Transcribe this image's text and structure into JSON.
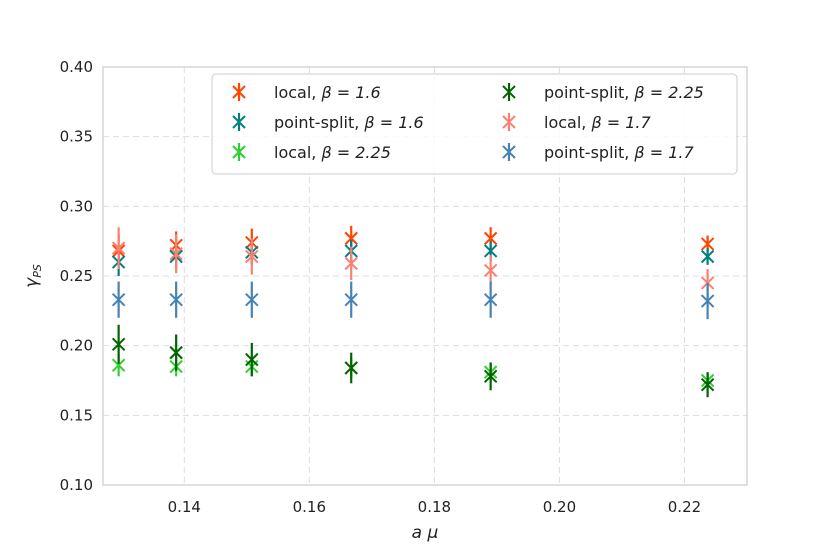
{
  "chart_data": {
    "type": "scatter",
    "title": "",
    "xlabel": "a μ",
    "ylabel_main": "γ",
    "ylabel_sub": "PS",
    "xlim": [
      0.127,
      0.23
    ],
    "ylim": [
      0.1,
      0.4
    ],
    "xticks": [
      0.14,
      0.16,
      0.18,
      0.2,
      0.22
    ],
    "xtick_labels": [
      "0.14",
      "0.16",
      "0.18",
      "0.20",
      "0.22"
    ],
    "yticks": [
      0.1,
      0.15,
      0.2,
      0.25,
      0.3,
      0.35,
      0.4
    ],
    "ytick_labels": [
      "0.10",
      "0.15",
      "0.20",
      "0.25",
      "0.30",
      "0.35",
      "0.40"
    ],
    "grid": true,
    "legend_position": "top-right",
    "x": [
      0.1295,
      0.1387,
      0.1508,
      0.1667,
      0.189,
      0.2237
    ],
    "series": [
      {
        "name": "local, β = 1.6",
        "legend_label": "local, ",
        "legend_beta": "β = 1.6",
        "color": "#ff4500",
        "values": [
          0.268,
          0.272,
          0.274,
          0.277,
          0.277,
          0.273
        ],
        "errors": [
          0.012,
          0.01,
          0.01,
          0.009,
          0.008,
          0.006
        ]
      },
      {
        "name": "point-split, β = 1.6",
        "legend_label": "point-split, ",
        "legend_beta": "β = 1.6",
        "color": "#008080",
        "values": [
          0.26,
          0.264,
          0.267,
          0.268,
          0.268,
          0.264
        ],
        "errors": [
          0.01,
          0.009,
          0.009,
          0.008,
          0.007,
          0.006
        ]
      },
      {
        "name": "local, β = 2.25",
        "legend_label": "local, ",
        "legend_beta": "β = 2.25",
        "color": "#32cd32",
        "values": [
          0.186,
          0.185,
          0.185,
          0.184,
          0.181,
          0.175
        ],
        "errors": [
          0.008,
          0.007,
          0.007,
          0.007,
          0.006,
          0.005
        ]
      },
      {
        "name": "point-split, β = 2.25",
        "legend_label": "point-split, ",
        "legend_beta": "β = 2.25",
        "color": "#006400",
        "values": [
          0.201,
          0.195,
          0.19,
          0.184,
          0.178,
          0.172
        ],
        "errors": [
          0.014,
          0.013,
          0.012,
          0.011,
          0.01,
          0.009
        ]
      },
      {
        "name": "local, β = 1.7",
        "legend_label": "local, ",
        "legend_beta": "β = 1.7",
        "color": "#fa8072",
        "values": [
          0.27,
          0.266,
          0.264,
          0.259,
          0.254,
          0.245
        ],
        "errors": [
          0.015,
          0.014,
          0.013,
          0.012,
          0.011,
          0.01
        ]
      },
      {
        "name": "point-split, β = 1.7",
        "legend_label": "point-split, ",
        "legend_beta": "β = 1.7",
        "color": "#4682b4",
        "values": [
          0.233,
          0.233,
          0.233,
          0.233,
          0.233,
          0.232
        ],
        "errors": [
          0.013,
          0.013,
          0.013,
          0.013,
          0.013,
          0.013
        ]
      }
    ]
  }
}
